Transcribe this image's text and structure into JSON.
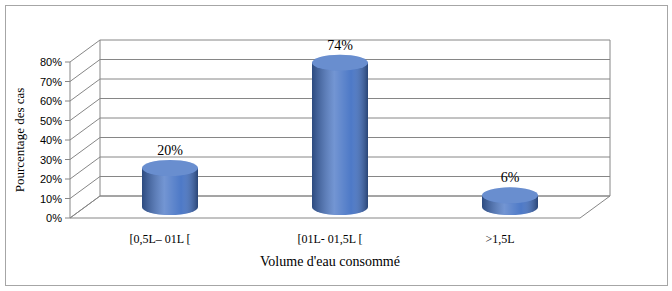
{
  "chart_data": {
    "type": "bar",
    "categories": [
      "[0,5L– 01L [",
      "[01L- 01,5L [",
      ">1,5L"
    ],
    "values": [
      20,
      74,
      6
    ],
    "value_labels": [
      "20%",
      "74%",
      "6%"
    ],
    "color": "#4472c4",
    "x_label": "Volume d'eau consommé",
    "y_label": "Pourcentage des cas",
    "ylim": [
      0,
      80
    ],
    "yticks": [
      {
        "value": 0,
        "label": "0%"
      },
      {
        "value": 10,
        "label": "10%"
      },
      {
        "value": 20,
        "label": "20%"
      },
      {
        "value": 30,
        "label": "30%"
      },
      {
        "value": 40,
        "label": "40%"
      },
      {
        "value": 50,
        "label": "50%"
      },
      {
        "value": 60,
        "label": "60%"
      },
      {
        "value": 70,
        "label": "70%"
      },
      {
        "value": 80,
        "label": "80%"
      }
    ],
    "grid": true,
    "data_labels": true
  }
}
